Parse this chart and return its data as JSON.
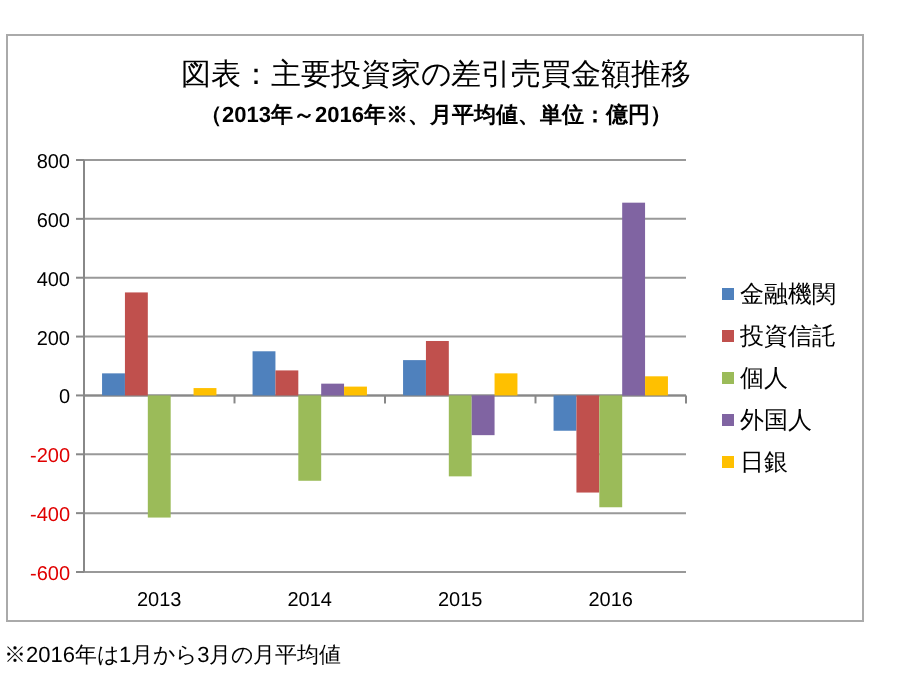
{
  "chart_data": {
    "type": "bar",
    "title": "図表：主要投資家の差引売買金額推移",
    "subtitle": "（2013年～2016年※、月平均値、単位：億円）",
    "categories": [
      "2013",
      "2014",
      "2015",
      "2016"
    ],
    "series": [
      {
        "name": "金融機関",
        "color": "#4f81bd",
        "values": [
          75,
          150,
          120,
          -120
        ]
      },
      {
        "name": "投資信託",
        "color": "#c0504d",
        "values": [
          350,
          85,
          185,
          -330
        ]
      },
      {
        "name": "個人",
        "color": "#9bbb59",
        "values": [
          -415,
          -290,
          -275,
          -380
        ]
      },
      {
        "name": "外国人",
        "color": "#8064a2",
        "values": [
          null,
          40,
          -135,
          655
        ]
      },
      {
        "name": "日銀",
        "color": "#ffc000",
        "values": [
          25,
          30,
          75,
          65
        ]
      }
    ],
    "ylim": [
      -600,
      800
    ],
    "yticks": [
      -600,
      -400,
      -200,
      0,
      200,
      400,
      600,
      800
    ],
    "grid": "y",
    "legend": "right",
    "annotations": [
      "※2016年は1月から3月の月平均値"
    ]
  }
}
